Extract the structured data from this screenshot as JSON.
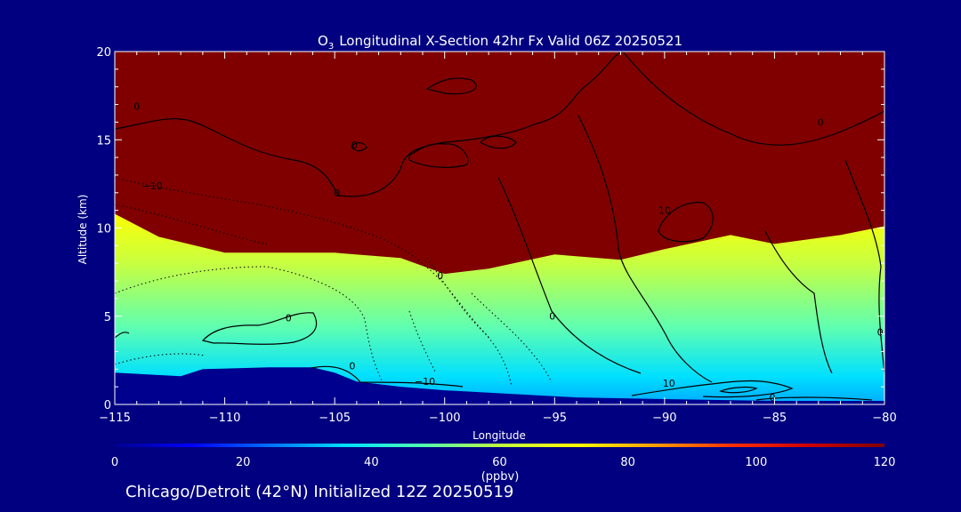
{
  "chart_data": {
    "type": "heatmap",
    "title_main": "Longitudinal X-Section 42hr  Fx Valid 06Z 20250521",
    "title_species": "O",
    "title_subscript": "3",
    "xlabel": "Longitude",
    "ylabel": "Altitude (km)",
    "xlim": [
      -115,
      -80
    ],
    "ylim": [
      0,
      20
    ],
    "x_ticks": [
      -115,
      -110,
      -105,
      -100,
      -95,
      -90,
      -85,
      -80
    ],
    "x_tick_labels": [
      "−115",
      "−110",
      "−105",
      "−100",
      "−95",
      "−90",
      "−85",
      "−80"
    ],
    "y_ticks": [
      0,
      5,
      10,
      15,
      20
    ],
    "y_tick_labels": [
      "0",
      "5",
      "10",
      "15",
      "20"
    ],
    "colorbar": {
      "min": 0,
      "max": 120,
      "ticks": [
        0,
        20,
        40,
        60,
        80,
        100,
        120
      ],
      "tick_labels": [
        "0",
        "20",
        "40",
        "60",
        "80",
        "100",
        "120"
      ],
      "units": "(ppbv)",
      "colormap": [
        "#00008f",
        "#0000ff",
        "#0070ff",
        "#00e0ff",
        "#50ffb0",
        "#c0ff40",
        "#ffff00",
        "#ffa000",
        "#ff3000",
        "#d00000",
        "#800000"
      ]
    },
    "tropopause_height_km": [
      {
        "lon": -115,
        "alt": 10.8
      },
      {
        "lon": -113,
        "alt": 9.5
      },
      {
        "lon": -110,
        "alt": 8.6
      },
      {
        "lon": -105,
        "alt": 8.6
      },
      {
        "lon": -102,
        "alt": 8.3
      },
      {
        "lon": -100,
        "alt": 7.4
      },
      {
        "lon": -98,
        "alt": 7.7
      },
      {
        "lon": -95,
        "alt": 8.5
      },
      {
        "lon": -92,
        "alt": 8.2
      },
      {
        "lon": -90,
        "alt": 8.8
      },
      {
        "lon": -87,
        "alt": 9.6
      },
      {
        "lon": -85,
        "alt": 9.1
      },
      {
        "lon": -82,
        "alt": 9.6
      },
      {
        "lon": -80,
        "alt": 10.1
      }
    ],
    "terrain_height_km": [
      {
        "lon": -115,
        "alt": 1.8
      },
      {
        "lon": -112,
        "alt": 1.6
      },
      {
        "lon": -111,
        "alt": 2.0
      },
      {
        "lon": -108,
        "alt": 2.1
      },
      {
        "lon": -106,
        "alt": 2.1
      },
      {
        "lon": -105,
        "alt": 1.8
      },
      {
        "lon": -104,
        "alt": 1.3
      },
      {
        "lon": -102,
        "alt": 1.0
      },
      {
        "lon": -100,
        "alt": 0.8
      },
      {
        "lon": -97,
        "alt": 0.6
      },
      {
        "lon": -94,
        "alt": 0.4
      },
      {
        "lon": -90,
        "alt": 0.3
      },
      {
        "lon": -85,
        "alt": 0.2
      },
      {
        "lon": -80,
        "alt": 0.2
      }
    ],
    "contour_labels": [
      {
        "text": "0",
        "lon": -114,
        "alt": 16.7
      },
      {
        "text": "0",
        "lon": -104.1,
        "alt": 14.5
      },
      {
        "text": "0",
        "lon": -104.9,
        "alt": 11.8
      },
      {
        "text": "−10",
        "lon": -113.3,
        "alt": 12.2
      },
      {
        "text": "10",
        "lon": -90,
        "alt": 10.8
      },
      {
        "text": "0",
        "lon": -82.9,
        "alt": 15.8
      },
      {
        "text": "0",
        "lon": -107.1,
        "alt": 4.7
      },
      {
        "text": "0",
        "lon": -100.2,
        "alt": 7.1
      },
      {
        "text": "0",
        "lon": -95.1,
        "alt": 4.8
      },
      {
        "text": "0",
        "lon": -104.2,
        "alt": 2.0
      },
      {
        "text": "−10",
        "lon": -100.9,
        "alt": 1.1
      },
      {
        "text": "10",
        "lon": -89.8,
        "alt": 1.0
      },
      {
        "text": "0",
        "lon": -85.1,
        "alt": 0.2
      },
      {
        "text": "0",
        "lon": -80.2,
        "alt": 3.9
      }
    ]
  },
  "footer": "Chicago/Detroit (42°N) Initialized 12Z 20250519"
}
